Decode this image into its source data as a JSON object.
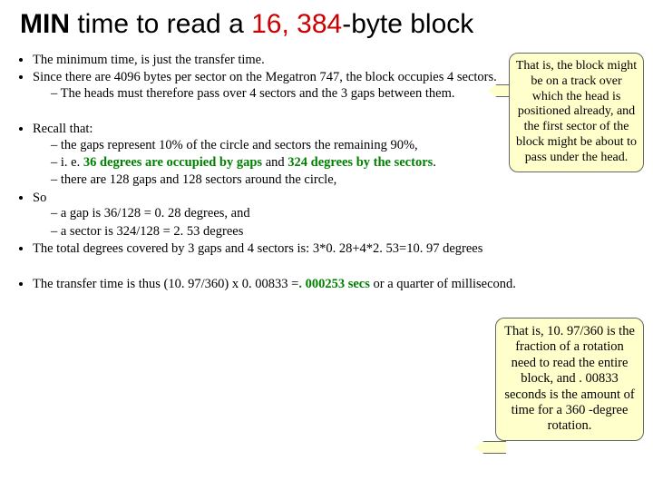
{
  "title": {
    "word_min": "MIN",
    "rest1": " time to read a ",
    "red_num": "16, 384",
    "rest2": "-byte block"
  },
  "bullets": {
    "b1": "The minimum time, is just the transfer time.",
    "b2": "Since there are 4096 bytes per sector on the Megatron 747, the block occupies 4 sectors.",
    "b2s1": "The heads must therefore pass over 4 sectors and the 3 gaps between them.",
    "b3": "Recall that:",
    "b3s1": "the gaps represent 10% of the circle and sectors the remaining 90%,",
    "b3s2a": "i. e. ",
    "b3s2b": "36 degrees are occupied by gaps",
    "b3s2c": " and ",
    "b3s2d": "324 degrees by the sectors",
    "b3s2e": ".",
    "b3s3": "there are 128 gaps and 128 sectors around the circle,",
    "b4": "So",
    "b4s1": "a gap is 36/128 = 0. 28 degrees, and",
    "b4s2": "a sector is 324/128 =  2. 53 degrees",
    "b5": "The total degrees covered by 3 gaps and 4 sectors is: 3*0. 28+4*2. 53=10. 97 degrees",
    "b6a": "The transfer time is thus (10. 97/360) x 0. 00833 =",
    "b6b": ". 000253 secs",
    "b6c": " or a quarter of millisecond."
  },
  "callout1": "That is, the block might be on a track over which the head is positioned already, and the first sector of the block might be about to pass under the head.",
  "callout2": "That is, 10. 97/360 is the fraction of a rotation need to read the entire block, and . 00833 seconds is the amount of time for a 360 -degree rotation.",
  "colors": {
    "red": "#cc0000",
    "green": "#008000",
    "callout_bg": "#ffffcc"
  }
}
